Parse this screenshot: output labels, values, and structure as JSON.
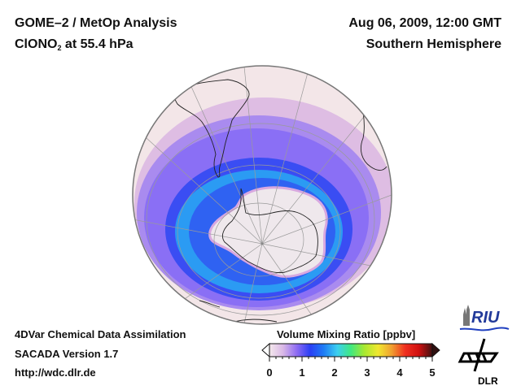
{
  "header": {
    "title_line1": "GOME–2 / MetOp Analysis",
    "species_prefix": "ClONO",
    "species_subscript": "2",
    "species_suffix": " at 55.4 hPa",
    "date": "Aug 06, 2009, 12:00 GMT",
    "region": "Southern Hemisphere"
  },
  "footer": {
    "line1": "4DVar Chemical Data Assimilation",
    "line2": "SACADA Version 1.7",
    "line3": "http://wdc.dlr.de"
  },
  "colorbar": {
    "title": "Volume Mixing Ratio [ppbv]",
    "ticks": [
      "0",
      "1",
      "2",
      "3",
      "4",
      "5"
    ],
    "range": [
      0,
      5
    ],
    "stops": [
      "#f4e8ec",
      "#d9b8e6",
      "#8f6cf2",
      "#2a3ff5",
      "#1e7cf5",
      "#3ccff0",
      "#40e880",
      "#a8e830",
      "#f0e830",
      "#f0a030",
      "#f03020",
      "#d01010",
      "#401010"
    ]
  },
  "map": {
    "projection": "orthographic",
    "hemisphere": "south",
    "colors": {
      "background": "#f3e6e8",
      "vortex_core": "#efe8ec",
      "ring_light": "#c7a0e4",
      "ring_violet": "#8a72f4",
      "ring_blue": "#2e50f2",
      "ring_cyan": "#2c9cf2",
      "coast": "#222222",
      "grid": "#9a9a9a"
    }
  },
  "logos": {
    "riu": "RIU",
    "dlr": "DLR"
  }
}
